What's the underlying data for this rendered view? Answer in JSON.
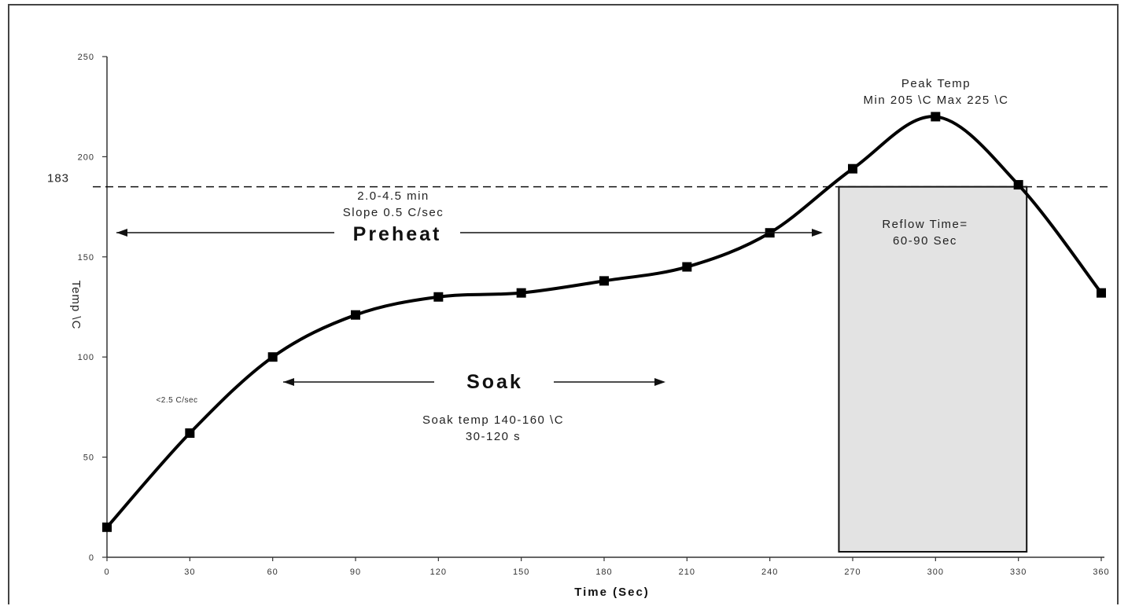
{
  "chart_data": {
    "type": "line",
    "xlabel": "Time (Sec)",
    "ylabel": "Temp \\C",
    "xlim": [
      0,
      360
    ],
    "ylim": [
      0,
      250
    ],
    "xticks": [
      0,
      30,
      60,
      90,
      120,
      150,
      180,
      210,
      240,
      270,
      300,
      330,
      360
    ],
    "yticks": [
      0,
      50,
      100,
      150,
      200,
      250
    ],
    "series": [
      {
        "x": [
          0,
          30,
          60,
          90,
          120,
          150,
          180,
          210,
          240,
          270,
          300,
          330,
          360
        ],
        "y": [
          15,
          62,
          100,
          121,
          130,
          132,
          138,
          145,
          162,
          194,
          220,
          186,
          132
        ]
      }
    ],
    "reference_line": {
      "y": 183,
      "label": "183",
      "style": "dashed"
    },
    "reflow_box": {
      "x_start": 265,
      "x_end": 333,
      "y_top": 185
    },
    "annotations": {
      "peak_title": "Peak Temp",
      "peak_range": "Min 205 \\C Max 225 \\C",
      "preheat_time": "2.0-4.5 min",
      "preheat_slope": "Slope 0.5 C/sec",
      "preheat_label": "Preheat",
      "reflow_line1": "Reflow Time=",
      "reflow_line2": "60-90 Sec",
      "soak_label": "Soak",
      "soak_temp": "Soak temp 140-160 \\C",
      "soak_time": "30-120 s",
      "ramp_rate": "<2.5 C/sec"
    },
    "grid": false,
    "legend": "none"
  },
  "colors": {
    "curve": "#000000",
    "reflow_fill": "#e3e3e3",
    "axis": "#333333"
  }
}
